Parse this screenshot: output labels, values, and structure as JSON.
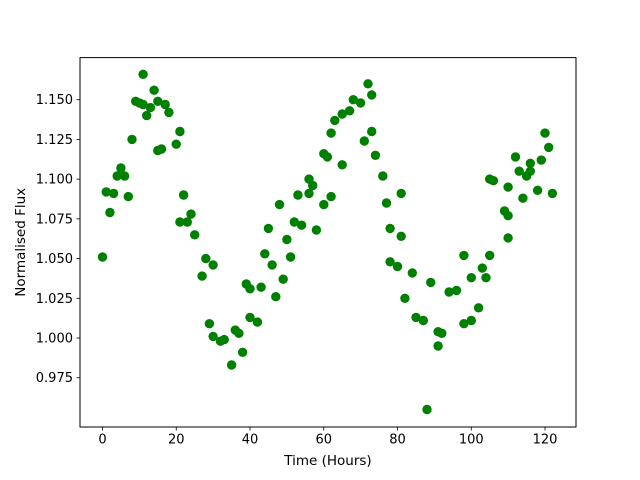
{
  "chart_data": {
    "type": "scatter",
    "title": "",
    "xlabel": "Time (Hours)",
    "ylabel": "Normalised Flux",
    "grid": false,
    "legend": null,
    "marker": {
      "shape": "circle",
      "color": "#008000",
      "radius_px": 4.7
    },
    "xlim": [
      -6.1,
      128.4
    ],
    "ylim": [
      0.944,
      1.1765
    ],
    "xticks": [
      0,
      20,
      40,
      60,
      80,
      100,
      120
    ],
    "yticks": [
      0.975,
      1.0,
      1.025,
      1.05,
      1.075,
      1.1,
      1.125,
      1.15
    ],
    "ytick_labels": [
      "0.975",
      "1.000",
      "1.025",
      "1.050",
      "1.075",
      "1.100",
      "1.125",
      "1.150"
    ],
    "points": [
      [
        0,
        1.051
      ],
      [
        1,
        1.092
      ],
      [
        2,
        1.079
      ],
      [
        3,
        1.091
      ],
      [
        4,
        1.102
      ],
      [
        5,
        1.107
      ],
      [
        6,
        1.102
      ],
      [
        7,
        1.089
      ],
      [
        8,
        1.125
      ],
      [
        9,
        1.149
      ],
      [
        10,
        1.148
      ],
      [
        11,
        1.166
      ],
      [
        11,
        1.147
      ],
      [
        12,
        1.14
      ],
      [
        13,
        1.145
      ],
      [
        14,
        1.156
      ],
      [
        15,
        1.149
      ],
      [
        15,
        1.118
      ],
      [
        16,
        1.119
      ],
      [
        17,
        1.147
      ],
      [
        18,
        1.142
      ],
      [
        20,
        1.122
      ],
      [
        21,
        1.13
      ],
      [
        21,
        1.073
      ],
      [
        22,
        1.09
      ],
      [
        23,
        1.073
      ],
      [
        24,
        1.078
      ],
      [
        25,
        1.065
      ],
      [
        27,
        1.039
      ],
      [
        28,
        1.05
      ],
      [
        29,
        1.009
      ],
      [
        30,
        1.046
      ],
      [
        30,
        1.001
      ],
      [
        32,
        0.998
      ],
      [
        33,
        0.999
      ],
      [
        35,
        0.983
      ],
      [
        36,
        1.005
      ],
      [
        37,
        1.003
      ],
      [
        38,
        0.991
      ],
      [
        39,
        1.034
      ],
      [
        40,
        1.031
      ],
      [
        40,
        1.013
      ],
      [
        42,
        1.01
      ],
      [
        43,
        1.032
      ],
      [
        44,
        1.053
      ],
      [
        45,
        1.069
      ],
      [
        46,
        1.046
      ],
      [
        47,
        1.026
      ],
      [
        48,
        1.084
      ],
      [
        49,
        1.037
      ],
      [
        50,
        1.062
      ],
      [
        51,
        1.051
      ],
      [
        52,
        1.073
      ],
      [
        53,
        1.09
      ],
      [
        54,
        1.071
      ],
      [
        56,
        1.1
      ],
      [
        56,
        1.091
      ],
      [
        57,
        1.096
      ],
      [
        58,
        1.068
      ],
      [
        60,
        1.084
      ],
      [
        62,
        1.089
      ],
      [
        60,
        1.116
      ],
      [
        61,
        1.114
      ],
      [
        62,
        1.129
      ],
      [
        63,
        1.137
      ],
      [
        65,
        1.141
      ],
      [
        65,
        1.109
      ],
      [
        67,
        1.143
      ],
      [
        68,
        1.15
      ],
      [
        70,
        1.148
      ],
      [
        71,
        1.124
      ],
      [
        72,
        1.16
      ],
      [
        73,
        1.153
      ],
      [
        73,
        1.13
      ],
      [
        74,
        1.115
      ],
      [
        76,
        1.102
      ],
      [
        77,
        1.085
      ],
      [
        78,
        1.069
      ],
      [
        78,
        1.048
      ],
      [
        80,
        1.045
      ],
      [
        81,
        1.091
      ],
      [
        81,
        1.064
      ],
      [
        82,
        1.025
      ],
      [
        84,
        1.041
      ],
      [
        85,
        1.013
      ],
      [
        87,
        1.011
      ],
      [
        88,
        0.955
      ],
      [
        89,
        1.035
      ],
      [
        91,
        1.004
      ],
      [
        91,
        0.995
      ],
      [
        92,
        1.003
      ],
      [
        94,
        1.029
      ],
      [
        96,
        1.03
      ],
      [
        98,
        1.052
      ],
      [
        98,
        1.009
      ],
      [
        100,
        1.011
      ],
      [
        100,
        1.038
      ],
      [
        102,
        1.019
      ],
      [
        103,
        1.044
      ],
      [
        104,
        1.038
      ],
      [
        105,
        1.052
      ],
      [
        105,
        1.1
      ],
      [
        106,
        1.099
      ],
      [
        109,
        1.08
      ],
      [
        110,
        1.077
      ],
      [
        110,
        1.063
      ],
      [
        110,
        1.095
      ],
      [
        112,
        1.114
      ],
      [
        113,
        1.105
      ],
      [
        115,
        1.102
      ],
      [
        114,
        1.088
      ],
      [
        116,
        1.11
      ],
      [
        116,
        1.105
      ],
      [
        118,
        1.093
      ],
      [
        119,
        1.112
      ],
      [
        120,
        1.129
      ],
      [
        121,
        1.12
      ],
      [
        122,
        1.091
      ]
    ]
  }
}
